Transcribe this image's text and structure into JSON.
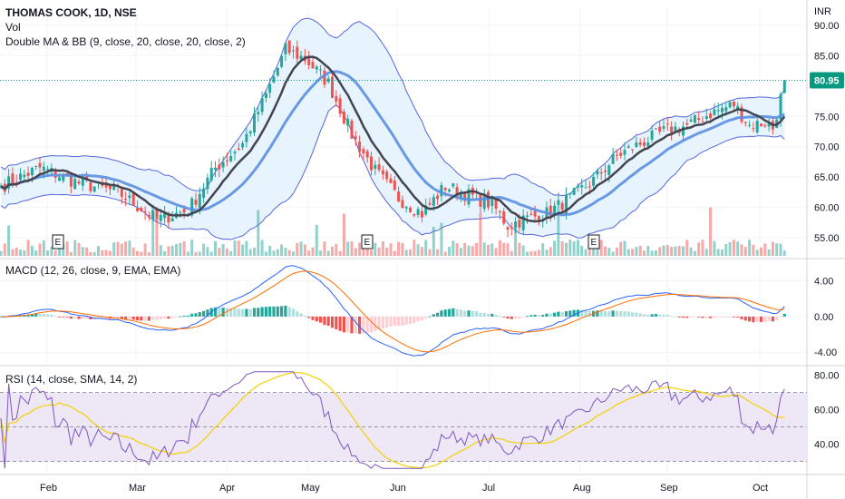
{
  "header": {
    "title": "THOMAS COOK, 1D, NSE",
    "vol_label": "Vol",
    "bb_label": "Double MA & BB (9, close, 20, close, 20, close, 2)",
    "macd_label": "MACD (12, 26, close, 9, EMA, EMA)",
    "rsi_label": "RSI (14, close, SMA, 14, 2)",
    "currency": "INR"
  },
  "colors": {
    "up": "#26a69a",
    "down": "#ef5350",
    "ma_fast": "#434651",
    "ma_slow": "#5b8fe0",
    "bb_band": "#5566dd",
    "bb_fill": "#e3f2fd",
    "macd": "#2962ff",
    "signal": "#ff6d00",
    "rsi": "#7e57c2",
    "rsi_ma": "#f5d000",
    "rsi_zone": "#ede7f6",
    "price_tag": "#089981"
  },
  "chart_data": {
    "type": "candlestick",
    "x_months": [
      "Feb",
      "Mar",
      "Apr",
      "May",
      "Jun",
      "Jul",
      "Aug",
      "Sep",
      "Oct"
    ],
    "earnings_marker": "E",
    "price_axis": {
      "ticks": [
        "90.00",
        "85.00",
        "75.00",
        "70.00",
        "65.00",
        "60.00",
        "55.00"
      ],
      "range": [
        52,
        93
      ]
    },
    "last_price": {
      "value": 80.95,
      "label": "80.95"
    },
    "macd_axis": {
      "ticks": [
        "4.00",
        "0.00",
        "-4.00"
      ],
      "range": [
        -5.2,
        6.2
      ]
    },
    "rsi_axis": {
      "ticks": [
        "80.00",
        "60.00",
        "40.00"
      ],
      "range": [
        24,
        84
      ],
      "upper_band": 70,
      "middle": 50,
      "lower_band": 30
    },
    "close_anchors": [
      [
        0,
        63.5
      ],
      [
        10,
        66.5
      ],
      [
        20,
        64
      ],
      [
        30,
        62.5
      ],
      [
        40,
        58
      ],
      [
        48,
        59.5
      ],
      [
        55,
        66.5
      ],
      [
        62,
        70.5
      ],
      [
        68,
        78.5
      ],
      [
        73,
        86
      ],
      [
        78,
        84.5
      ],
      [
        84,
        80.5
      ],
      [
        90,
        72
      ],
      [
        96,
        66
      ],
      [
        102,
        61.5
      ],
      [
        108,
        59
      ],
      [
        114,
        63.5
      ],
      [
        120,
        62
      ],
      [
        126,
        60.5
      ],
      [
        130,
        57
      ],
      [
        134,
        58
      ],
      [
        140,
        59
      ],
      [
        146,
        61.5
      ],
      [
        152,
        64.5
      ],
      [
        158,
        68.5
      ],
      [
        164,
        70.5
      ],
      [
        170,
        72.5
      ],
      [
        176,
        73.5
      ],
      [
        182,
        75.5
      ],
      [
        188,
        77
      ],
      [
        192,
        73.5
      ],
      [
        196,
        74
      ],
      [
        198,
        73
      ],
      [
        200,
        78
      ],
      [
        201,
        80.95
      ]
    ]
  }
}
